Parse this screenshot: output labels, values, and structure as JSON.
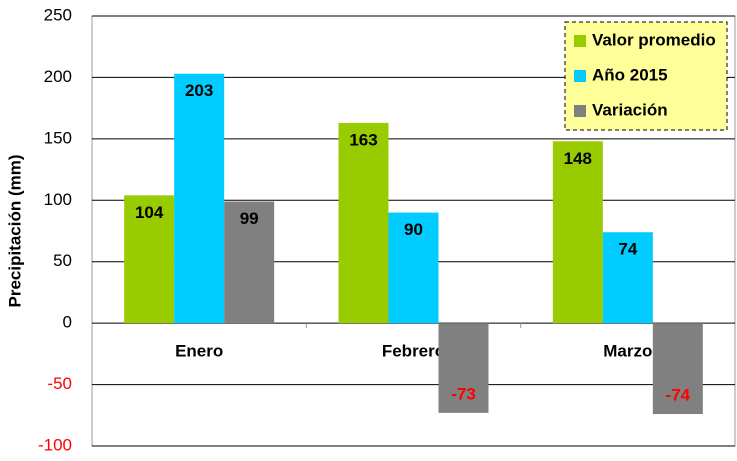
{
  "chart_data": {
    "type": "bar",
    "y_label": "Precipitación (mm)",
    "categories": [
      "Enero",
      "Febrero",
      "Marzo"
    ],
    "series": [
      {
        "name": "Valor promedio",
        "color": "#99cc00",
        "values": [
          104,
          163,
          148
        ]
      },
      {
        "name": "Año 2015",
        "color": "#00ccff",
        "values": [
          203,
          90,
          74
        ]
      },
      {
        "name": "Variación",
        "color": "#808080",
        "values": [
          99,
          -73,
          -74
        ]
      }
    ],
    "ylim": [
      -100,
      250
    ],
    "yticks": [
      -100,
      -50,
      0,
      50,
      100,
      150,
      200,
      250
    ],
    "grid": true,
    "legend": "top-right",
    "negative_color": "#ff0000"
  }
}
